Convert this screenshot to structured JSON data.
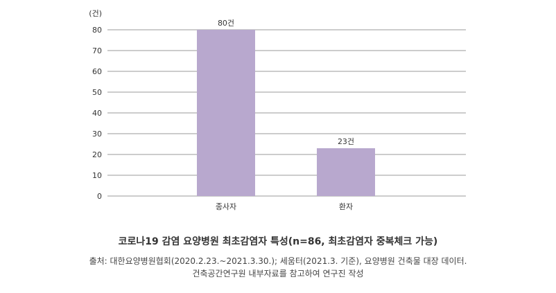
{
  "chart_data": {
    "type": "bar",
    "unit_label": "(건)",
    "categories": [
      "종사자",
      "환자"
    ],
    "values": [
      80,
      23
    ],
    "value_labels": [
      "80건",
      "23건"
    ],
    "ylim": [
      0,
      80
    ],
    "yticks": [
      0,
      10,
      20,
      30,
      40,
      50,
      60,
      70,
      80
    ],
    "grid": true,
    "bar_color": "#b8a8ce",
    "grid_color": "#999999"
  },
  "caption": {
    "title": "코로나19 감염 요양병원 최초감염자 특성(n=86, 최초감염자 중복체크 가능)",
    "source_line1": "출처: 대한요양병원협회(2020.2.23.~2021.3.30.); 세움터(2021.3. 기준), 요양병원 건축물 대장 데이터.",
    "source_line2": "건축공간연구원 내부자료를 참고하여 연구진 작성"
  }
}
